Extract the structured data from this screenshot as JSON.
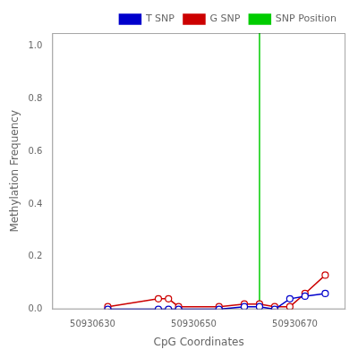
{
  "chart_data": {
    "type": "line",
    "xlabel": "CpG Coordinates",
    "ylabel": "Methylation Frequency",
    "x": [
      50930633,
      50930643,
      50930645,
      50930647,
      50930655,
      50930660,
      50930663,
      50930666,
      50930669,
      50930672,
      50930676
    ],
    "series": [
      {
        "name": "T SNP",
        "color": "#0000cc",
        "marker": "o",
        "values": [
          0.0,
          0.0,
          0.0,
          0.0,
          0.0,
          0.01,
          0.01,
          0.0,
          0.04,
          0.05,
          0.06
        ]
      },
      {
        "name": "G SNP",
        "color": "#cc0000",
        "marker": "o",
        "values": [
          0.01,
          0.04,
          0.04,
          0.01,
          0.01,
          0.02,
          0.02,
          0.01,
          0.01,
          0.06,
          0.13
        ]
      },
      {
        "name": "SNP Position",
        "color": "#00cc00",
        "type": "vline",
        "x": 50930663
      }
    ],
    "xlim": [
      50930622,
      50930680
    ],
    "ylim": [
      0.0,
      1.05
    ],
    "xticks": [
      50930630,
      50930650,
      50930670
    ],
    "yticks": [
      {
        "value": 0.0,
        "label": "0.0"
      },
      0.2,
      0.4,
      0.6,
      0.8,
      {
        "value": 1.0,
        "label": "1.0"
      }
    ],
    "grid": false,
    "legend": "upper right"
  }
}
